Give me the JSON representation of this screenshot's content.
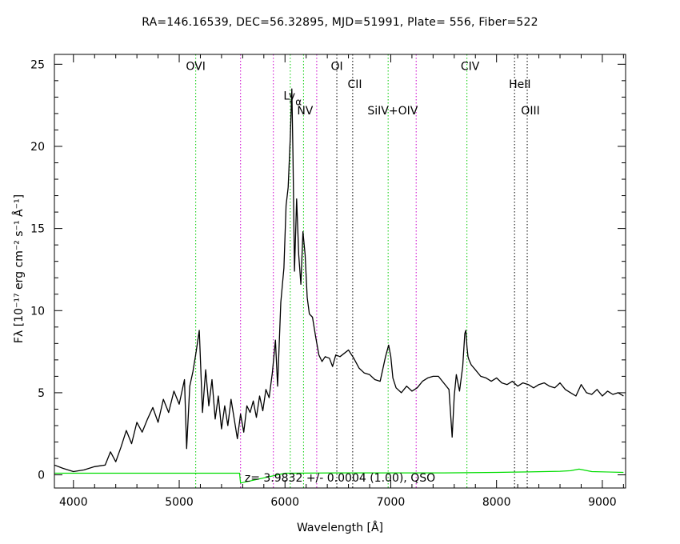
{
  "title": "RA=146.16539, DEC=56.32895, MJD=51991, Plate= 556, Fiber=522",
  "xlabel": "Wavelength [Å]",
  "ylabel": "Fλ [10⁻¹⁷ erg cm⁻² s⁻¹ Å⁻¹]",
  "redshift_label": "z= 3.9832 +/- 0.0004 (1.00), QSO",
  "chart_data": {
    "type": "line",
    "xlim": [
      3820,
      9220
    ],
    "ylim": [
      -0.8,
      25.6
    ],
    "xticks": [
      4000,
      5000,
      6000,
      7000,
      8000,
      9000
    ],
    "yticks": [
      0,
      5,
      10,
      15,
      20,
      25
    ],
    "colors": {
      "spectrum": "#000000",
      "error": "#00dd00",
      "green_line": "#00cc00",
      "magenta_line": "#cc00cc",
      "black_line": "#000000"
    },
    "series": [
      {
        "x": [
          3820,
          3900,
          4000,
          4100,
          4200,
          4300,
          4350,
          4400,
          4450,
          4500,
          4550,
          4600,
          4650,
          4700,
          4750,
          4800,
          4850,
          4900,
          4950,
          5000,
          5050,
          5070,
          5100,
          5130,
          5160,
          5190,
          5220,
          5250,
          5280,
          5310,
          5340,
          5370,
          5400,
          5430,
          5460,
          5490,
          5520,
          5550,
          5580,
          5610,
          5640,
          5670,
          5700,
          5730,
          5760,
          5790,
          5820,
          5850,
          5880,
          5910,
          5930,
          5960,
          5990,
          6010,
          6030,
          6050,
          6065,
          6075,
          6090,
          6110,
          6130,
          6150,
          6170,
          6190,
          6210,
          6230,
          6260,
          6290,
          6320,
          6350,
          6380,
          6420,
          6450,
          6480,
          6520,
          6560,
          6600,
          6650,
          6700,
          6750,
          6800,
          6850,
          6900,
          6950,
          6980,
          7000,
          7020,
          7050,
          7100,
          7150,
          7200,
          7250,
          7300,
          7350,
          7400,
          7450,
          7500,
          7550,
          7580,
          7600,
          7620,
          7650,
          7680,
          7700,
          7710,
          7720,
          7730,
          7740,
          7760,
          7800,
          7850,
          7900,
          7950,
          8000,
          8050,
          8100,
          8150,
          8200,
          8250,
          8300,
          8350,
          8400,
          8450,
          8500,
          8550,
          8600,
          8650,
          8700,
          8750,
          8800,
          8850,
          8900,
          8950,
          9000,
          9050,
          9100,
          9150,
          9200
        ],
        "y": [
          0.6,
          0.4,
          0.2,
          0.3,
          0.5,
          0.6,
          1.4,
          0.8,
          1.7,
          2.7,
          1.9,
          3.2,
          2.6,
          3.4,
          4.1,
          3.2,
          4.6,
          3.8,
          5.1,
          4.3,
          5.8,
          1.6,
          5.4,
          6.3,
          7.5,
          8.8,
          3.8,
          6.4,
          4.2,
          5.8,
          3.4,
          4.8,
          2.8,
          4.2,
          3.0,
          4.6,
          3.4,
          2.2,
          3.7,
          2.6,
          4.2,
          3.8,
          4.5,
          3.5,
          4.8,
          3.9,
          5.2,
          4.7,
          6.2,
          8.2,
          5.4,
          10.5,
          12.6,
          16.4,
          17.5,
          20.6,
          23.5,
          19.5,
          12.4,
          16.8,
          13.4,
          11.6,
          14.8,
          13.4,
          10.8,
          9.8,
          9.6,
          8.4,
          7.3,
          6.9,
          7.2,
          7.1,
          6.6,
          7.3,
          7.2,
          7.4,
          7.6,
          7.1,
          6.5,
          6.2,
          6.1,
          5.8,
          5.7,
          7.2,
          7.9,
          7.2,
          5.9,
          5.3,
          5.0,
          5.4,
          5.1,
          5.3,
          5.7,
          5.9,
          6.0,
          6.0,
          5.6,
          5.2,
          2.3,
          4.8,
          6.1,
          5.1,
          6.6,
          8.6,
          8.8,
          7.8,
          7.2,
          7.0,
          6.7,
          6.4,
          6.0,
          5.9,
          5.7,
          5.9,
          5.6,
          5.5,
          5.7,
          5.4,
          5.6,
          5.5,
          5.3,
          5.5,
          5.6,
          5.4,
          5.3,
          5.6,
          5.2,
          5.0,
          4.8,
          5.5,
          5.0,
          4.9,
          5.2,
          4.8,
          5.1,
          4.9,
          5.0,
          4.8
        ]
      },
      {
        "x": [
          3820,
          4400,
          5000,
          5570,
          5580,
          6000,
          6500,
          7000,
          7500,
          8000,
          8300,
          8600,
          8700,
          8780,
          8820,
          8900,
          9200
        ],
        "y": [
          0.1,
          0.1,
          0.1,
          0.1,
          -0.5,
          0.1,
          0.12,
          0.12,
          0.12,
          0.15,
          0.18,
          0.22,
          0.25,
          0.35,
          0.3,
          0.2,
          0.15
        ]
      }
    ],
    "lines": [
      {
        "x": 5156,
        "color": "green"
      },
      {
        "x": 5580,
        "color": "magenta"
      },
      {
        "x": 5890,
        "color": "magenta"
      },
      {
        "x": 6050,
        "color": "green"
      },
      {
        "x": 6175,
        "color": "green"
      },
      {
        "x": 6300,
        "color": "magenta"
      },
      {
        "x": 6490,
        "color": "black"
      },
      {
        "x": 6640,
        "color": "black"
      },
      {
        "x": 6975,
        "color": "green"
      },
      {
        "x": 7240,
        "color": "magenta"
      },
      {
        "x": 7720,
        "color": "green"
      },
      {
        "x": 8170,
        "color": "black"
      },
      {
        "x": 8290,
        "color": "black"
      }
    ],
    "labels": [
      {
        "text": "OVI",
        "x": 5156,
        "y": 24.9
      },
      {
        "text": "Ly",
        "x": 6072,
        "y": 23.1,
        "sub": "α"
      },
      {
        "text": "NV",
        "x": 6190,
        "y": 22.2
      },
      {
        "text": "OI",
        "x": 6490,
        "y": 24.9
      },
      {
        "text": "CII",
        "x": 6660,
        "y": 23.8
      },
      {
        "text": "SiIV+OIV",
        "x": 7018,
        "y": 22.2
      },
      {
        "text": "CIV",
        "x": 7750,
        "y": 24.9
      },
      {
        "text": "HeII",
        "x": 8220,
        "y": 23.8
      },
      {
        "text": "OIII",
        "x": 8320,
        "y": 22.2
      }
    ]
  }
}
